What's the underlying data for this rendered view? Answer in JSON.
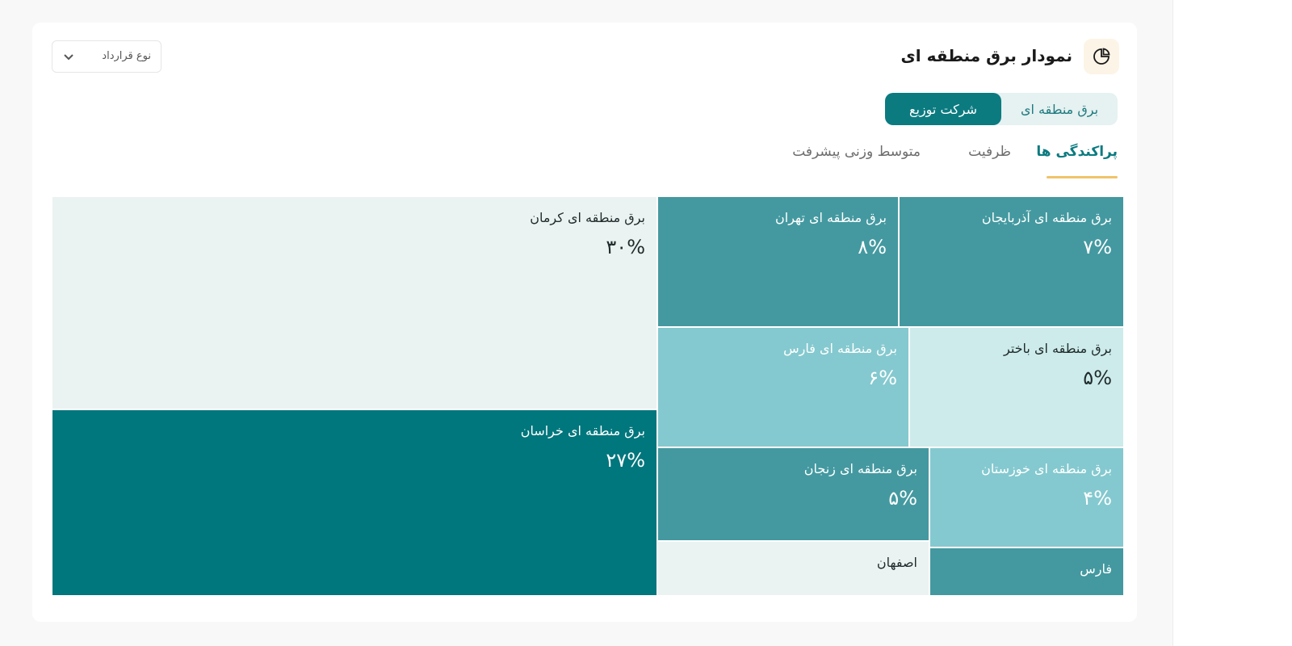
{
  "header": {
    "title": "نمودار برق منطقه ای",
    "title_icon": "pie-chart-icon",
    "contract_dropdown": {
      "label": "نوع قرارداد",
      "icon": "chevron-down-icon"
    }
  },
  "segmented": {
    "options": [
      "برق منطقه ای",
      "شرکت توزیع"
    ],
    "selected": "شرکت توزیع"
  },
  "tabs": [
    {
      "label": "پراکندگی ها",
      "active": true
    },
    {
      "label": "ظرفیت",
      "active": false
    },
    {
      "label": "متوسط وزنی پیشرفت",
      "active": false
    }
  ],
  "colors": {
    "accent": "#0b7b80",
    "underline": "#f0c36a",
    "cell_palest": "#eaf3f2",
    "cell_dark": "#00767d",
    "cell_mid": "#4499a0",
    "cell_light": "#84c9cf",
    "cell_lighter": "#cdebeb"
  },
  "chart_data": {
    "type": "treemap",
    "items": [
      {
        "label": "برق منطقه ای کرمان",
        "value": 30,
        "value_text": "۳۰%",
        "color": "#eaf3f2",
        "text_color": "#1f2a2a"
      },
      {
        "label": "برق منطقه ای خراسان",
        "value": 27,
        "value_text": "۲۷%",
        "color": "#00767d",
        "text_color": "#ffffff"
      },
      {
        "label": "برق منطقه ای تهران",
        "value": 8,
        "value_text": "۸%",
        "color": "#4499a0",
        "text_color": "#ffffff"
      },
      {
        "label": "برق منطقه ای آذربایجان",
        "value": 7,
        "value_text": "۷%",
        "color": "#4499a0",
        "text_color": "#ffffff"
      },
      {
        "label": "برق منطقه ای فارس",
        "value": 6,
        "value_text": "۶%",
        "color": "#84c9cf",
        "text_color": "#ffffff"
      },
      {
        "label": "برق منطقه ای باختر",
        "value": 5,
        "value_text": "۵%",
        "color": "#cdebeb",
        "text_color": "#1f2a2a"
      },
      {
        "label": "برق منطقه ای زنجان",
        "value": 5,
        "value_text": "۵%",
        "color": "#4499a0",
        "text_color": "#ffffff"
      },
      {
        "label": "برق منطقه ای خوزستان",
        "value": 4,
        "value_text": "۴%",
        "color": "#84c9cf",
        "text_color": "#ffffff"
      },
      {
        "label": "اصفهان",
        "value_text": "",
        "color": "#eaf3f2",
        "text_color": "#1f2a2a"
      },
      {
        "label": "فارس",
        "value_text": "",
        "color": "#4499a0",
        "text_color": "#ffffff"
      }
    ]
  }
}
